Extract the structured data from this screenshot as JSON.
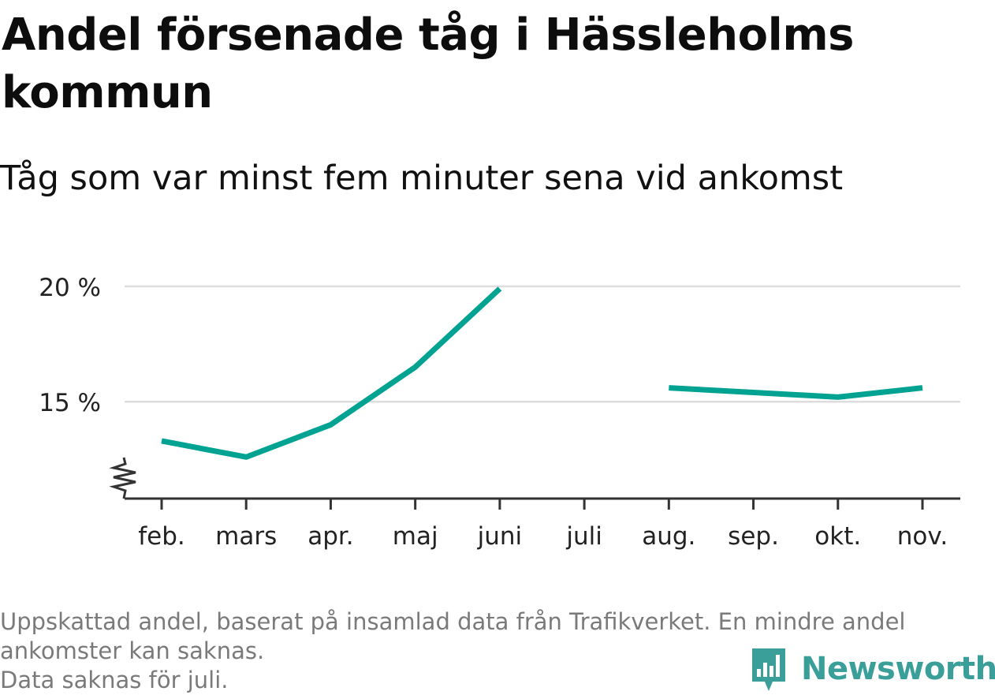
{
  "title": "Andel försenade tåg i Hässleholms kommun",
  "subtitle": "Tåg som var minst fem minuter sena vid ankomst",
  "chart_data": {
    "type": "line",
    "categories": [
      "feb.",
      "mars",
      "apr.",
      "maj",
      "juni",
      "juli",
      "aug.",
      "sep.",
      "okt.",
      "nov."
    ],
    "series": [
      {
        "values": [
          13.3,
          12.6,
          14.0,
          16.5,
          19.9,
          null,
          15.6,
          15.4,
          15.2,
          15.6
        ]
      }
    ],
    "y_ticks": [
      {
        "value": 15,
        "label": "15 %"
      },
      {
        "value": 20,
        "label": "20 %"
      }
    ],
    "ylim": [
      10.8,
      20.0
    ],
    "axis_break": true,
    "grid": true,
    "line_color": "#00a392",
    "xlabel": "",
    "ylabel": ""
  },
  "footnote": {
    "line1": "Uppskattad andel, baserat på insamlad data från Trafikverket. En mindre andel",
    "line2": "ankomster kan saknas.",
    "line3": "Data saknas för juli."
  },
  "brand": {
    "name": "Newsworthy",
    "icon": "newsworthy-logo-icon",
    "color": "#3a9e99"
  }
}
